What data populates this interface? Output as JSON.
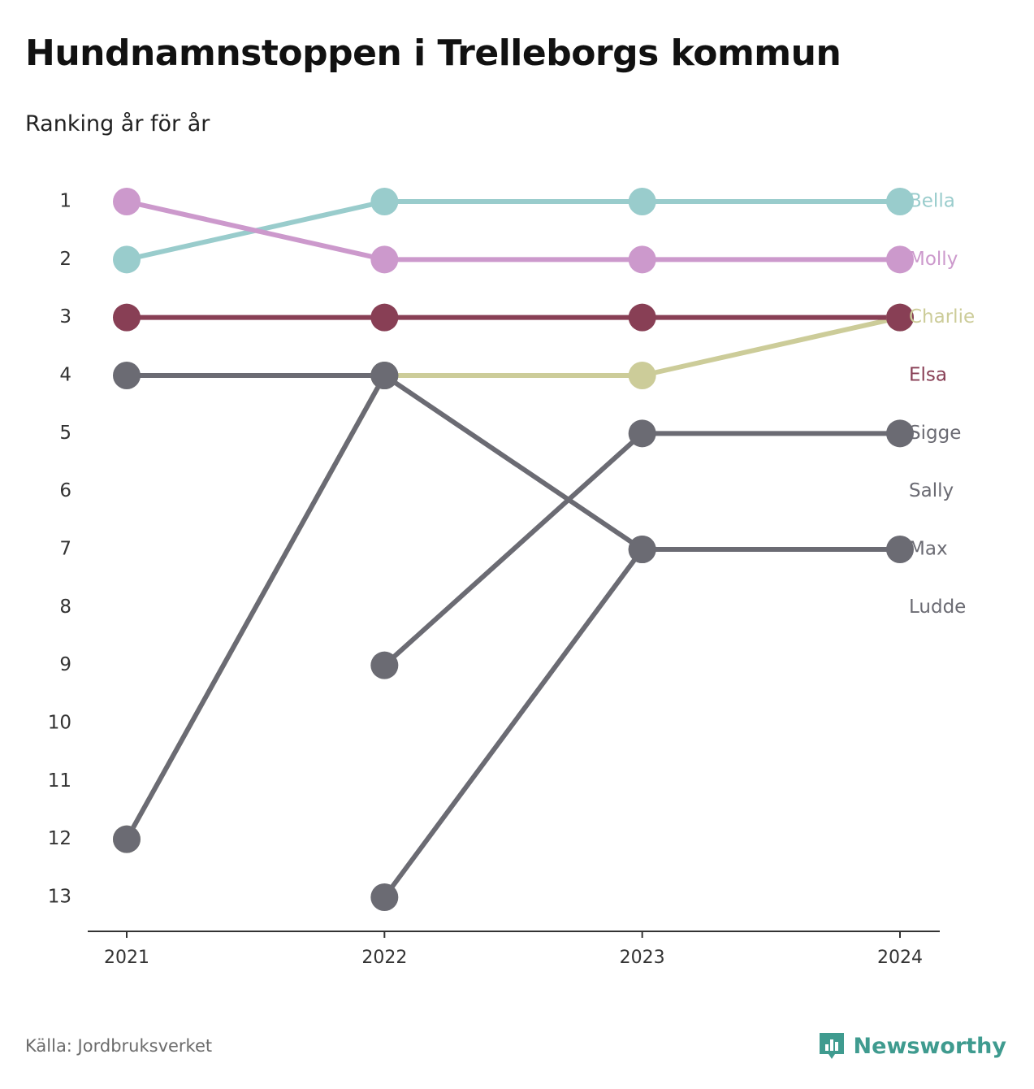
{
  "title": "Hundnamnstoppen i Trelleborgs kommun",
  "subtitle": "Ranking år för år",
  "source": "Källa: Jordbruksverket",
  "brand": "Newsworthy",
  "colors": {
    "brand": "#3f9b8f",
    "axis": "#333333",
    "text": "#333333"
  },
  "chart_data": {
    "type": "line",
    "x": [
      "2021",
      "2022",
      "2023",
      "2024"
    ],
    "ylim": [
      1,
      13
    ],
    "y_reversed": true,
    "yticks": [
      "1",
      "2",
      "3",
      "4",
      "5",
      "6",
      "7",
      "8",
      "9",
      "10",
      "11",
      "12",
      "13"
    ],
    "grid": false,
    "series": [
      {
        "name": "Bella",
        "color": "#99cccc",
        "label_rank": 1,
        "values": [
          2,
          1,
          1,
          1
        ]
      },
      {
        "name": "Molly",
        "color": "#cc99cc",
        "label_rank": 2,
        "values": [
          1,
          2,
          2,
          2
        ]
      },
      {
        "name": "Charlie",
        "color": "#cccc99",
        "label_rank": 3,
        "values": [
          12,
          4,
          4,
          3
        ]
      },
      {
        "name": "Elsa",
        "color": "#883f55",
        "label_rank": 4,
        "values": [
          3,
          3,
          3,
          3
        ]
      },
      {
        "name": "Sigge",
        "color": "#6b6b73",
        "label_rank": 5,
        "values": [
          null,
          9,
          5,
          5
        ]
      },
      {
        "name": "Sally",
        "color": "#6b6b73",
        "label_rank": 6,
        "values": [
          4,
          4,
          null,
          null
        ]
      },
      {
        "name": "Max",
        "color": "#6b6b73",
        "label_rank": 7,
        "values": [
          null,
          13,
          7,
          7
        ]
      },
      {
        "name": "Ludde",
        "color": "#6b6b73",
        "label_rank": 8,
        "values": [
          12,
          4,
          7,
          null
        ]
      }
    ]
  }
}
